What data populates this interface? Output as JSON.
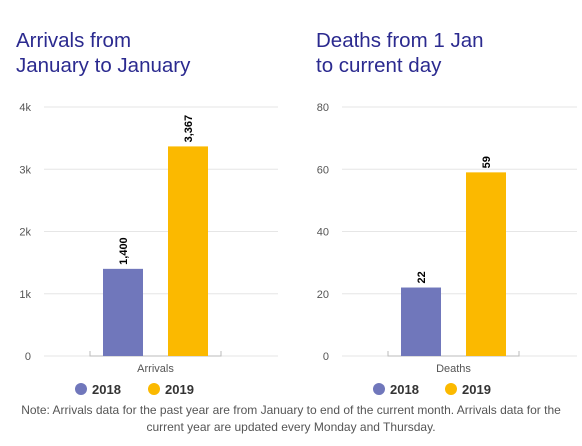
{
  "colors": {
    "title": "#2b2a8f",
    "series_2018": "#7077bb",
    "series_2019": "#fbb900",
    "grid": "#e6e6e6",
    "axis_text": "#555555"
  },
  "arrivals": {
    "title_line1": "Arrivals from",
    "title_line2": "January to January"
  },
  "deaths": {
    "title_line1": "Deaths from 1 Jan",
    "title_line2": "to current day"
  },
  "note": {
    "line1": "Note: Arrivals data for the past year are from January to end of the current month. Arrivals data for the",
    "line2": "current year are updated every Monday and Thursday."
  },
  "chart_data": [
    {
      "type": "bar",
      "title": "Arrivals from January to January",
      "categories": [
        "Arrivals"
      ],
      "series": [
        {
          "name": "2018",
          "values": [
            1400
          ],
          "label": "1,400",
          "color": "#7077bb"
        },
        {
          "name": "2019",
          "values": [
            3367
          ],
          "label": "3,367",
          "color": "#fbb900"
        }
      ],
      "ylim": [
        0,
        4000
      ],
      "yticks": [
        0,
        1000,
        2000,
        3000,
        4000
      ],
      "yticklabels": [
        "0",
        "1k",
        "2k",
        "3k",
        "4k"
      ],
      "grid": true,
      "legend": "bottom"
    },
    {
      "type": "bar",
      "title": "Deaths from 1 Jan to current day",
      "categories": [
        "Deaths"
      ],
      "series": [
        {
          "name": "2018",
          "values": [
            22
          ],
          "label": "22",
          "color": "#7077bb"
        },
        {
          "name": "2019",
          "values": [
            59
          ],
          "label": "59",
          "color": "#fbb900"
        }
      ],
      "ylim": [
        0,
        80
      ],
      "yticks": [
        0,
        20,
        40,
        60,
        80
      ],
      "yticklabels": [
        "0",
        "20",
        "40",
        "60",
        "80"
      ],
      "grid": true,
      "legend": "bottom"
    }
  ]
}
